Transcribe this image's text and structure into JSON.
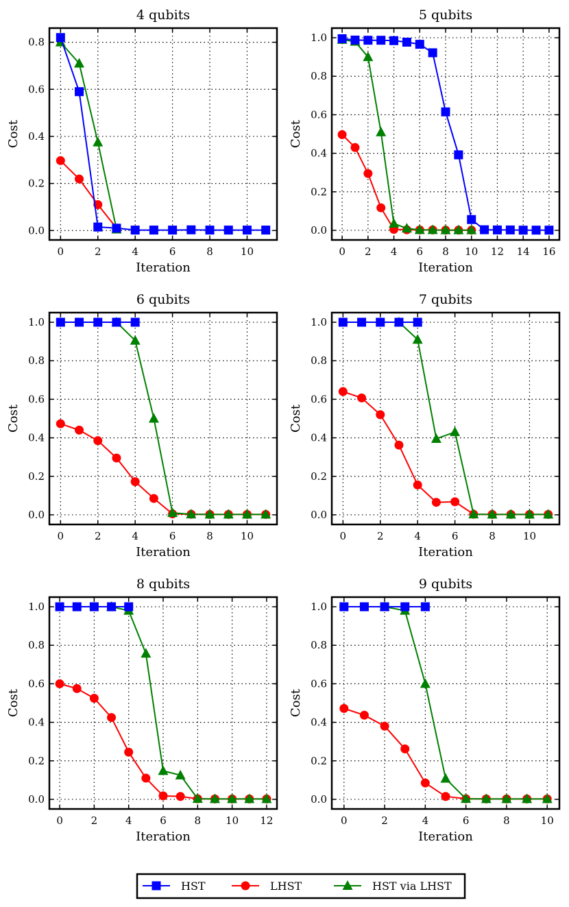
{
  "colors": {
    "HST": "#0000ff",
    "LHST": "#ff0000",
    "HST via LHST": "#008000"
  },
  "legend": {
    "entries": [
      {
        "label": "HST",
        "color": "#0000ff",
        "marker": "square"
      },
      {
        "label": "LHST",
        "color": "#ff0000",
        "marker": "circle"
      },
      {
        "label": "HST via LHST",
        "color": "#008000",
        "marker": "triangle"
      }
    ]
  },
  "chart_data": [
    {
      "type": "line",
      "title": "4 qubits",
      "xlabel": "Iteration",
      "ylabel": "Cost",
      "xlim": [
        -0.6,
        11.6
      ],
      "ylim": [
        -0.04,
        0.86
      ],
      "xticks": [
        0,
        2,
        4,
        6,
        8,
        10
      ],
      "yticks": [
        0.0,
        0.2,
        0.4,
        0.6,
        0.8
      ],
      "ytick_labels": [
        "0.0",
        "0.2",
        "0.4",
        "0.6",
        "0.8"
      ],
      "grid": true,
      "series": [
        {
          "name": "LHST",
          "marker": "circle",
          "x": [
            0,
            1,
            2,
            3
          ],
          "y": [
            0.297,
            0.219,
            0.11,
            0.01
          ]
        },
        {
          "name": "HST via LHST",
          "marker": "triangle",
          "x": [
            0,
            1,
            2,
            3
          ],
          "y": [
            0.8,
            0.71,
            0.375,
            0.005
          ]
        },
        {
          "name": "HST",
          "marker": "square",
          "x": [
            0,
            1,
            2,
            3,
            4,
            5,
            6,
            7,
            8,
            9,
            10,
            11
          ],
          "y": [
            0.82,
            0.59,
            0.015,
            0.01,
            0.002,
            0.002,
            0.002,
            0.003,
            0.002,
            0.002,
            0.002,
            0.002
          ]
        }
      ]
    },
    {
      "type": "line",
      "title": "5 qubits",
      "xlabel": "Iteration",
      "ylabel": "Cost",
      "xlim": [
        -0.8,
        16.8
      ],
      "ylim": [
        -0.05,
        1.05
      ],
      "xticks": [
        0,
        2,
        4,
        6,
        8,
        10,
        12,
        14,
        16
      ],
      "yticks": [
        0.0,
        0.2,
        0.4,
        0.6,
        0.8,
        1.0
      ],
      "ytick_labels": [
        "0.0",
        "0.2",
        "0.4",
        "0.6",
        "0.8",
        "1.0"
      ],
      "grid": true,
      "series": [
        {
          "name": "LHST",
          "marker": "circle",
          "x": [
            0,
            1,
            2,
            3,
            4,
            5,
            6,
            7,
            8,
            9,
            10
          ],
          "y": [
            0.497,
            0.43,
            0.295,
            0.117,
            0.005,
            0.003,
            0.002,
            0.002,
            0.001,
            0.001,
            0.001
          ]
        },
        {
          "name": "HST via LHST",
          "marker": "triangle",
          "x": [
            0,
            1,
            2,
            3,
            4,
            5,
            6,
            7,
            8,
            9,
            10
          ],
          "y": [
            0.99,
            0.98,
            0.9,
            0.51,
            0.035,
            0.01,
            0.002,
            0.002,
            0.001,
            0.001,
            0.001
          ]
        },
        {
          "name": "HST",
          "marker": "square",
          "x": [
            0,
            1,
            2,
            3,
            4,
            5,
            6,
            7,
            8,
            9,
            10,
            11,
            12,
            13,
            14,
            15,
            16
          ],
          "y": [
            0.995,
            0.988,
            0.987,
            0.987,
            0.985,
            0.977,
            0.966,
            0.922,
            0.615,
            0.392,
            0.056,
            0.003,
            0.002,
            0.002,
            0.001,
            0.001,
            0.001
          ]
        }
      ]
    },
    {
      "type": "line",
      "title": "6 qubits",
      "xlabel": "Iteration",
      "ylabel": "Cost",
      "xlim": [
        -0.6,
        11.6
      ],
      "ylim": [
        -0.05,
        1.05
      ],
      "xticks": [
        0,
        2,
        4,
        6,
        8,
        10
      ],
      "yticks": [
        0.0,
        0.2,
        0.4,
        0.6,
        0.8,
        1.0
      ],
      "ytick_labels": [
        "0.0",
        "0.2",
        "0.4",
        "0.6",
        "0.8",
        "1.0"
      ],
      "grid": true,
      "series": [
        {
          "name": "LHST",
          "marker": "circle",
          "x": [
            0,
            1,
            2,
            3,
            4,
            5,
            6,
            7,
            8,
            9,
            10,
            11
          ],
          "y": [
            0.473,
            0.44,
            0.385,
            0.295,
            0.172,
            0.085,
            0.005,
            0.003,
            0.002,
            0.002,
            0.002,
            0.002
          ]
        },
        {
          "name": "HST via LHST",
          "marker": "triangle",
          "x": [
            3,
            4,
            5,
            6,
            7,
            8,
            9,
            10,
            11
          ],
          "y": [
            1.0,
            0.905,
            0.5,
            0.01,
            0.003,
            0.002,
            0.002,
            0.002,
            0.002
          ]
        },
        {
          "name": "HST",
          "marker": "square",
          "x": [
            0,
            1,
            2,
            3,
            4
          ],
          "y": [
            1.0,
            1.0,
            1.0,
            1.0,
            1.0
          ]
        }
      ]
    },
    {
      "type": "line",
      "title": "7 qubits",
      "xlabel": "Iteration",
      "ylabel": "Cost",
      "xlim": [
        -0.6,
        11.6
      ],
      "ylim": [
        -0.05,
        1.05
      ],
      "xticks": [
        0,
        2,
        4,
        6,
        8,
        10
      ],
      "yticks": [
        0.0,
        0.2,
        0.4,
        0.6,
        0.8,
        1.0
      ],
      "ytick_labels": [
        "0.0",
        "0.2",
        "0.4",
        "0.6",
        "0.8",
        "1.0"
      ],
      "grid": true,
      "series": [
        {
          "name": "LHST",
          "marker": "circle",
          "x": [
            0,
            1,
            2,
            3,
            4,
            5,
            6,
            7,
            8,
            9,
            10,
            11
          ],
          "y": [
            0.64,
            0.607,
            0.52,
            0.362,
            0.155,
            0.065,
            0.068,
            0.003,
            0.002,
            0.002,
            0.002,
            0.002
          ]
        },
        {
          "name": "HST via LHST",
          "marker": "triangle",
          "x": [
            3,
            4,
            5,
            6,
            7,
            8,
            9,
            10,
            11
          ],
          "y": [
            1.0,
            0.91,
            0.395,
            0.43,
            0.003,
            0.002,
            0.002,
            0.002,
            0.002
          ]
        },
        {
          "name": "HST",
          "marker": "square",
          "x": [
            0,
            1,
            2,
            3,
            4
          ],
          "y": [
            1.0,
            1.0,
            1.0,
            1.0,
            1.0
          ]
        }
      ]
    },
    {
      "type": "line",
      "title": "8 qubits",
      "xlabel": "Iteration",
      "ylabel": "Cost",
      "xlim": [
        -0.6,
        12.6
      ],
      "ylim": [
        -0.05,
        1.05
      ],
      "xticks": [
        0,
        2,
        4,
        6,
        8,
        10,
        12
      ],
      "yticks": [
        0.0,
        0.2,
        0.4,
        0.6,
        0.8,
        1.0
      ],
      "ytick_labels": [
        "0.0",
        "0.2",
        "0.4",
        "0.6",
        "0.8",
        "1.0"
      ],
      "grid": true,
      "series": [
        {
          "name": "LHST",
          "marker": "circle",
          "x": [
            0,
            1,
            2,
            3,
            4,
            5,
            6,
            7,
            8,
            9,
            10,
            11,
            12
          ],
          "y": [
            0.6,
            0.575,
            0.525,
            0.425,
            0.245,
            0.11,
            0.018,
            0.015,
            0.003,
            0.002,
            0.002,
            0.002,
            0.002
          ]
        },
        {
          "name": "HST via LHST",
          "marker": "triangle",
          "x": [
            3,
            4,
            5,
            6,
            7,
            8,
            9,
            10,
            11,
            12
          ],
          "y": [
            1.0,
            0.98,
            0.757,
            0.148,
            0.125,
            0.003,
            0.002,
            0.002,
            0.002,
            0.002
          ]
        },
        {
          "name": "HST",
          "marker": "square",
          "x": [
            0,
            1,
            2,
            3,
            4
          ],
          "y": [
            1.0,
            1.0,
            1.0,
            1.0,
            1.0
          ]
        }
      ]
    },
    {
      "type": "line",
      "title": "9 qubits",
      "xlabel": "Iteration",
      "ylabel": "Cost",
      "xlim": [
        -0.6,
        10.6
      ],
      "ylim": [
        -0.05,
        1.05
      ],
      "xticks": [
        0,
        2,
        4,
        6,
        8,
        10
      ],
      "yticks": [
        0.0,
        0.2,
        0.4,
        0.6,
        0.8,
        1.0
      ],
      "ytick_labels": [
        "0.0",
        "0.2",
        "0.4",
        "0.6",
        "0.8",
        "1.0"
      ],
      "grid": true,
      "series": [
        {
          "name": "LHST",
          "marker": "circle",
          "x": [
            0,
            1,
            2,
            3,
            4,
            5,
            6,
            7,
            8,
            9,
            10
          ],
          "y": [
            0.472,
            0.437,
            0.38,
            0.262,
            0.085,
            0.015,
            0.003,
            0.002,
            0.002,
            0.002,
            0.002
          ]
        },
        {
          "name": "HST via LHST",
          "marker": "triangle",
          "x": [
            2,
            3,
            4,
            5,
            6,
            7,
            8,
            9,
            10
          ],
          "y": [
            1.0,
            0.98,
            0.6,
            0.108,
            0.003,
            0.002,
            0.002,
            0.002,
            0.002
          ]
        },
        {
          "name": "HST",
          "marker": "square",
          "x": [
            0,
            1,
            2,
            3,
            4
          ],
          "y": [
            1.0,
            1.0,
            1.0,
            1.0,
            1.0
          ]
        }
      ]
    }
  ]
}
